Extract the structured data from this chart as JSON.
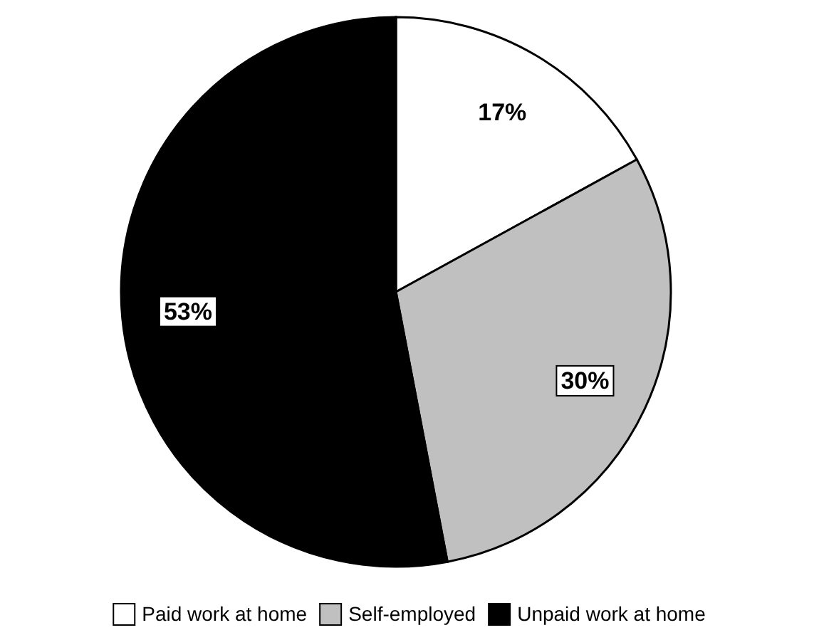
{
  "chart_data": {
    "type": "pie",
    "categories": [
      "Paid work at home",
      "Self-employed",
      "Unpaid work at home"
    ],
    "values": [
      17,
      30,
      53
    ],
    "colors": [
      "#ffffff",
      "#c0c0c0",
      "#000000"
    ],
    "value_labels": [
      "17%",
      "30%",
      "53%"
    ],
    "legend": "bottom"
  }
}
